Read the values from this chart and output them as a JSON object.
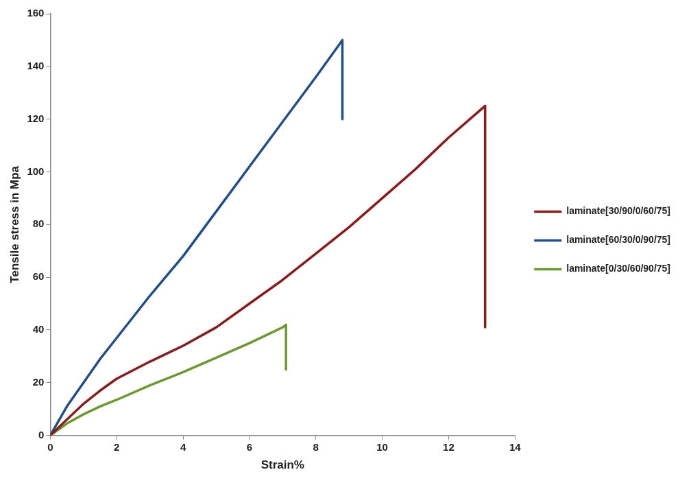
{
  "chart_data": {
    "type": "line",
    "xlabel": "Strain%",
    "ylabel": "Tensile stress in Mpa",
    "xlim": [
      0,
      14
    ],
    "xticks": [
      0,
      2,
      4,
      6,
      8,
      10,
      12,
      14
    ],
    "ylim": [
      0,
      160
    ],
    "yticks": [
      0,
      20,
      40,
      60,
      80,
      100,
      120,
      140,
      160
    ],
    "grid": false,
    "legend": "right",
    "marker": "none",
    "line_style": "solid",
    "series": [
      {
        "name": "laminate[30/90/0/60/75]",
        "color": "#8b1a1a",
        "x": [
          0,
          0.5,
          1,
          1.5,
          2,
          3,
          4,
          5,
          6,
          7,
          8,
          9,
          10,
          11,
          12,
          13.1,
          13.1
        ],
        "values": [
          0,
          6,
          12,
          17,
          21.5,
          28,
          34,
          41,
          50,
          59,
          69,
          79,
          90,
          101,
          113,
          125,
          41
        ]
      },
      {
        "name": "laminate[60/30/0/90/75]",
        "color": "#1f4e8c",
        "x": [
          0,
          0.5,
          1,
          1.5,
          2,
          3,
          4,
          5,
          6,
          7,
          8,
          8.8,
          8.8
        ],
        "values": [
          0,
          11,
          20,
          29,
          37,
          53,
          68,
          85,
          102,
          119,
          136,
          150,
          120
        ]
      },
      {
        "name": "laminate[0/30/60/90/75]",
        "color": "#6a9a2f",
        "x": [
          0,
          0.5,
          1,
          1.5,
          2,
          3,
          4,
          5,
          6,
          7,
          7.1,
          7.1
        ],
        "values": [
          0,
          4.5,
          8,
          11,
          13.5,
          19,
          24,
          29.5,
          35,
          41,
          42,
          25
        ]
      }
    ]
  }
}
